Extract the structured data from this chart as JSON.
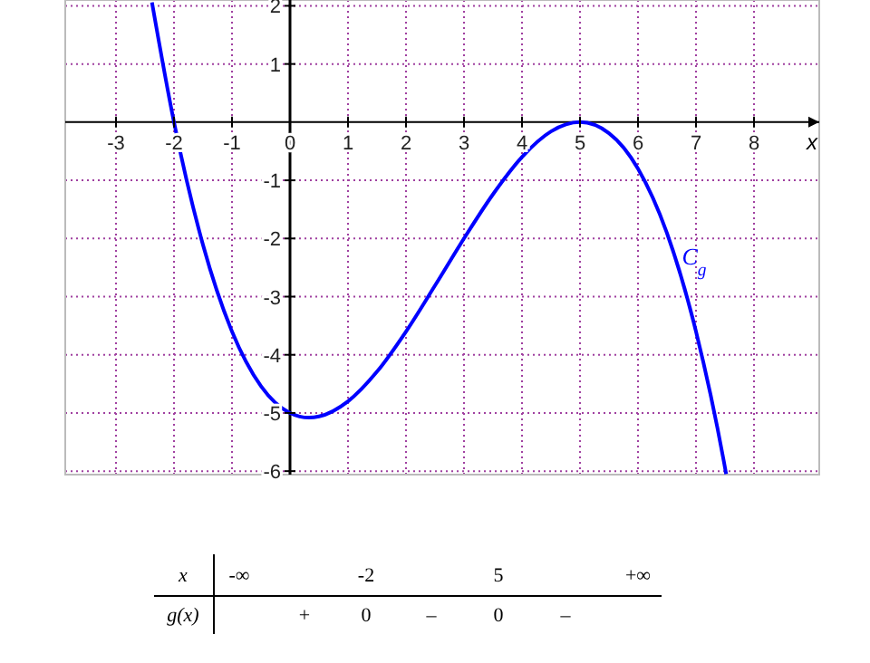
{
  "chart_data": {
    "type": "line",
    "xlabel": "x",
    "x": [
      -2.38,
      -2,
      -1.5,
      -1,
      -0.5,
      0,
      0.33,
      0.5,
      1,
      1.5,
      2,
      2.5,
      3,
      3.5,
      4,
      4.5,
      5,
      5.5,
      6,
      6.5,
      7,
      7.5,
      7.52
    ],
    "series": [
      {
        "color": "#0000ff",
        "values": [
          2.06,
          0,
          -2.11,
          -3.6,
          -4.54,
          -5,
          -5.08,
          -5.06,
          -4.8,
          -4.29,
          -3.6,
          -2.81,
          -2,
          -1.24,
          -0.6,
          -0.16,
          0,
          -0.19,
          -0.8,
          -1.91,
          -3.6,
          -5.94,
          -6.05
        ]
      }
    ],
    "xlim": [
      -3.875,
      9.125
    ],
    "ylim": [
      -6.06,
      2.1
    ],
    "xticks": [
      -3,
      -2,
      -1,
      0,
      1,
      2,
      3,
      4,
      5,
      6,
      7,
      8
    ],
    "yticks": [
      -6,
      -5,
      -4,
      -3,
      -2,
      -1,
      1,
      2
    ],
    "grid": true,
    "marker": "none",
    "line_style": "solid",
    "annotations": [
      "C$_{g}$",
      "x",
      "-∞",
      "-2",
      "5",
      "+∞",
      "g(x)",
      "+",
      "0",
      "–",
      "0",
      "–"
    ]
  }
}
